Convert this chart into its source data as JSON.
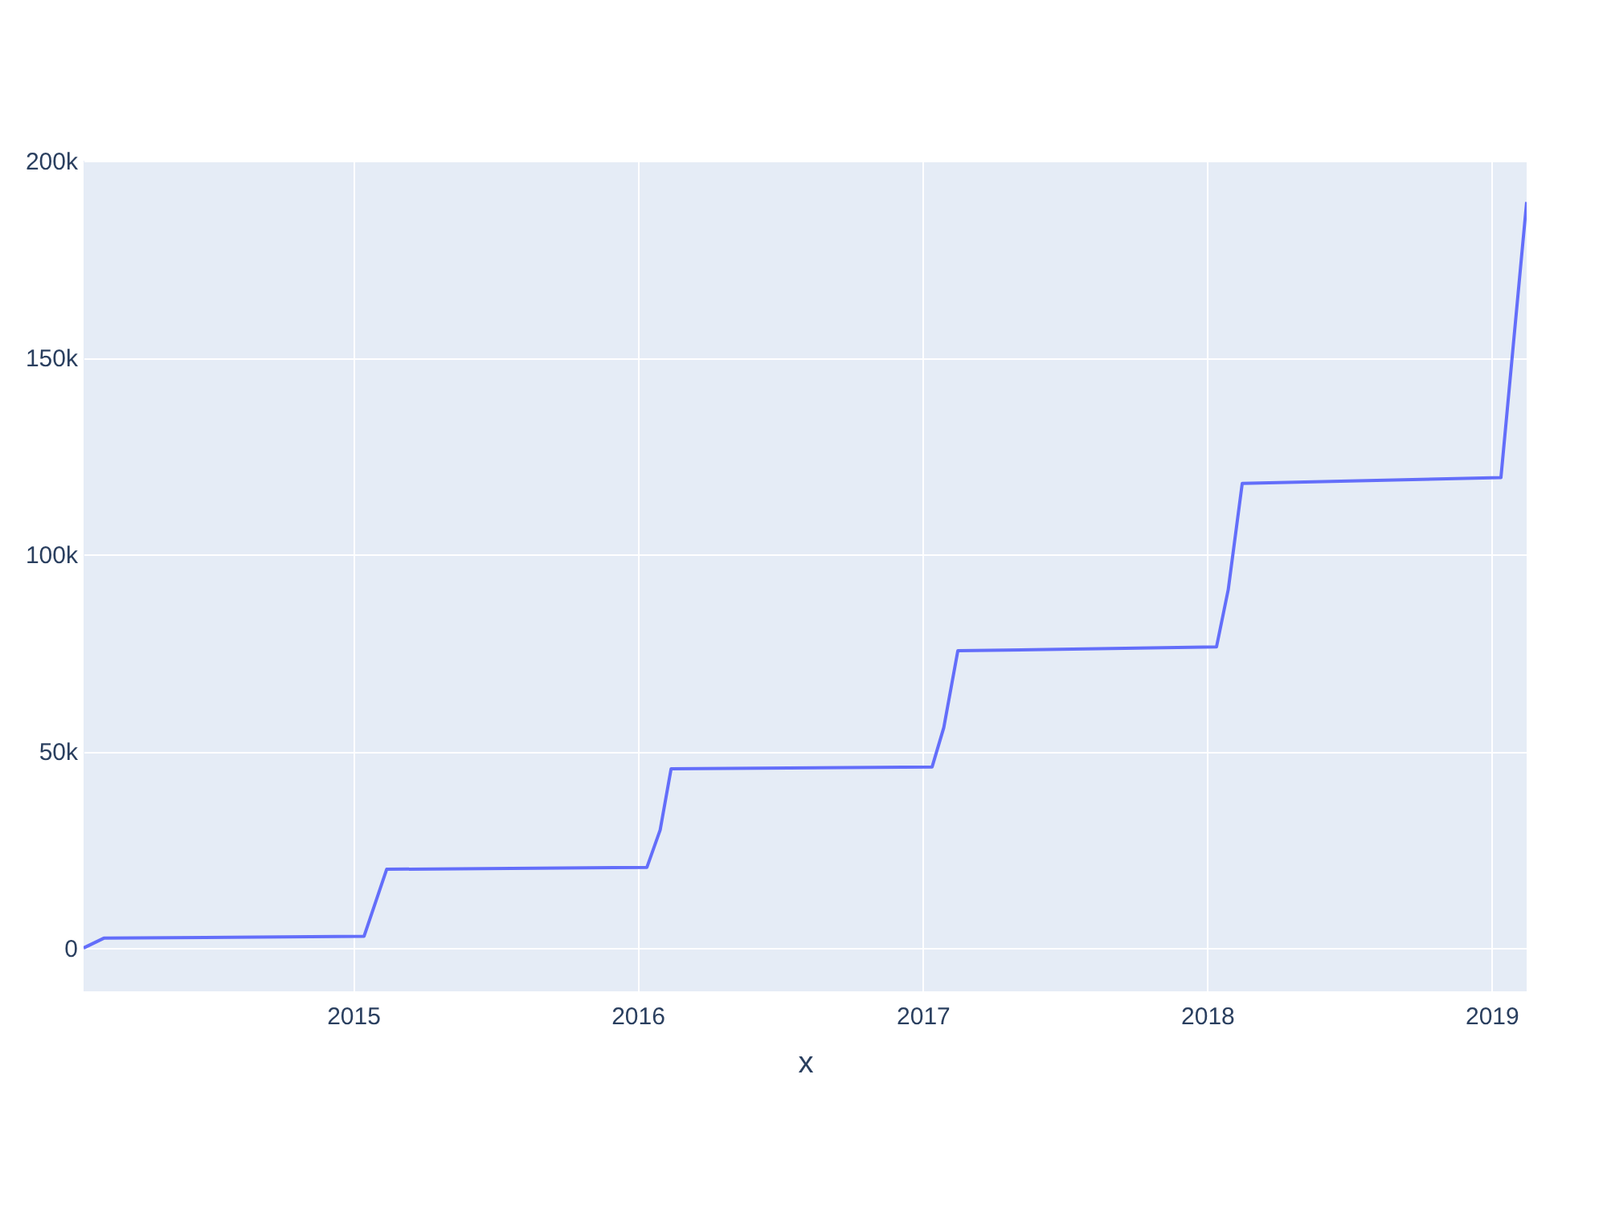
{
  "chart_data": {
    "type": "line",
    "xlabel": "x",
    "x": [
      "2014-01-20",
      "2014-02-15",
      "2015-01-15",
      "2015-02-13",
      "2016-01-13",
      "2016-01-30",
      "2016-02-13",
      "2017-01-13",
      "2017-01-28",
      "2017-02-15",
      "2018-01-13",
      "2018-01-28",
      "2018-02-15",
      "2019-01-13",
      "2019-02-15"
    ],
    "series": [
      {
        "color": "#636efa",
        "values": [
          0,
          2500,
          3000,
          20000,
          20500,
          30000,
          45500,
          46000,
          56000,
          75500,
          76500,
          91000,
          118000,
          119500,
          189500
        ]
      }
    ],
    "xlim": [
      "2014-01-20",
      "2019-02-15"
    ],
    "xticks": [
      "2015",
      "2016",
      "2017",
      "2018",
      "2019"
    ],
    "ylim": [
      -11000,
      200000
    ],
    "yticks": [
      0,
      {
        "value": 50000,
        "label": "50k"
      },
      {
        "value": 100000,
        "label": "100k"
      },
      {
        "value": 150000,
        "label": "150k"
      },
      {
        "value": 200000,
        "label": "200k"
      }
    ],
    "grid": true
  }
}
